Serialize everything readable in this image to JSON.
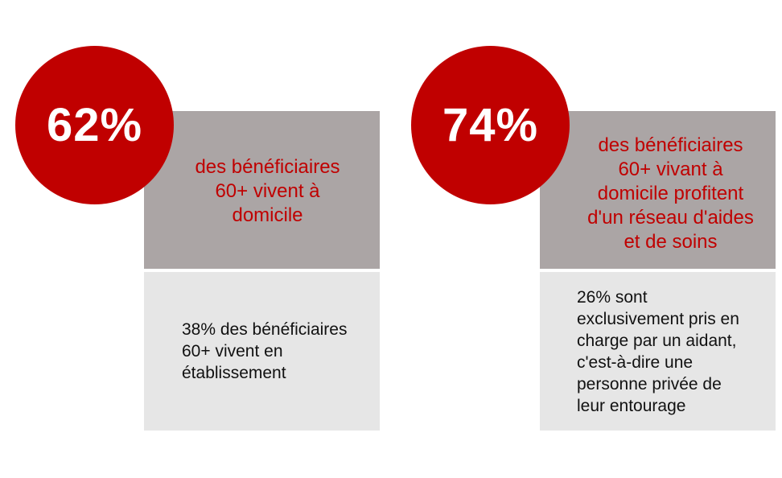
{
  "colors": {
    "accent": "#c00000",
    "top_box": "#aba5a5",
    "bottom_box": "#e6e6e6",
    "body_text": "#111111",
    "circle_text": "#ffffff"
  },
  "cards": [
    {
      "percent": "62%",
      "headline_lines": [
        "des bénéficiaires",
        "60+ vivent à",
        "domicile"
      ],
      "detail_lines": [
        "38% des bénéficiaires",
        "60+ vivent en",
        "établissement"
      ]
    },
    {
      "percent": "74%",
      "headline_lines": [
        "des bénéficiaires",
        "60+ vivant à",
        "domicile profitent",
        "d'un réseau d'aides",
        "et de soins"
      ],
      "detail_lines": [
        "26% sont",
        "exclusivement pris en",
        "charge par un aidant,",
        "c'est-à-dire une",
        "personne privée de",
        "leur entourage"
      ]
    }
  ]
}
